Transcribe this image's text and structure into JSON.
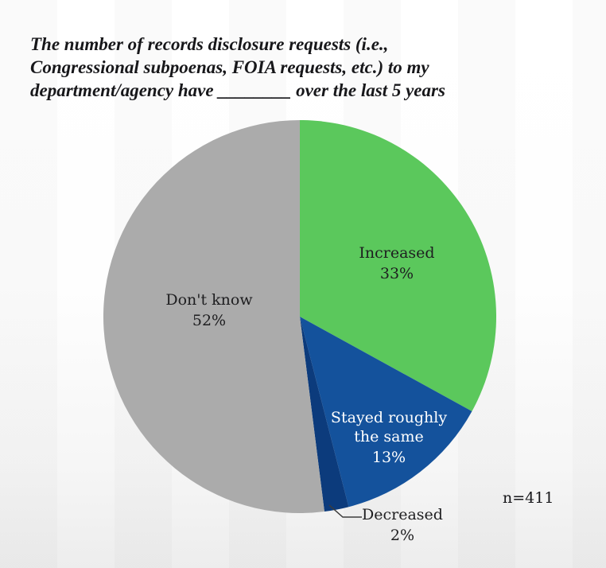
{
  "chart_data": {
    "type": "pie",
    "title": "The number of records disclosure requests (i.e., Congressional subpoenas, FOIA requests, etc.) to my department/agency have ________ over the last 5 years",
    "title_lines": [
      "The number of records disclosure requests (i.e.,",
      "Congressional subpoenas, FOIA requests, etc.) to my",
      "department/agency have ________ over the last 5 years"
    ],
    "note": "n=411",
    "start_angle_deg": 0,
    "direction": "clockwise",
    "legend_position": "none",
    "segments": [
      {
        "label": "Increased",
        "value": 33,
        "pct": "33%",
        "color": "#5bc85c",
        "label_color": "#1e1e20"
      },
      {
        "label": "Stayed roughly the same",
        "value": 13,
        "pct": "13%",
        "color": "#14529c",
        "label_color": "#ffffff"
      },
      {
        "label": "Decreased",
        "value": 2,
        "pct": "2%",
        "color": "#0c3b7c",
        "label_color": "#1e1e20"
      },
      {
        "label": "Don't know",
        "value": 52,
        "pct": "52%",
        "color": "#ababab",
        "label_color": "#1e1e20"
      }
    ]
  }
}
